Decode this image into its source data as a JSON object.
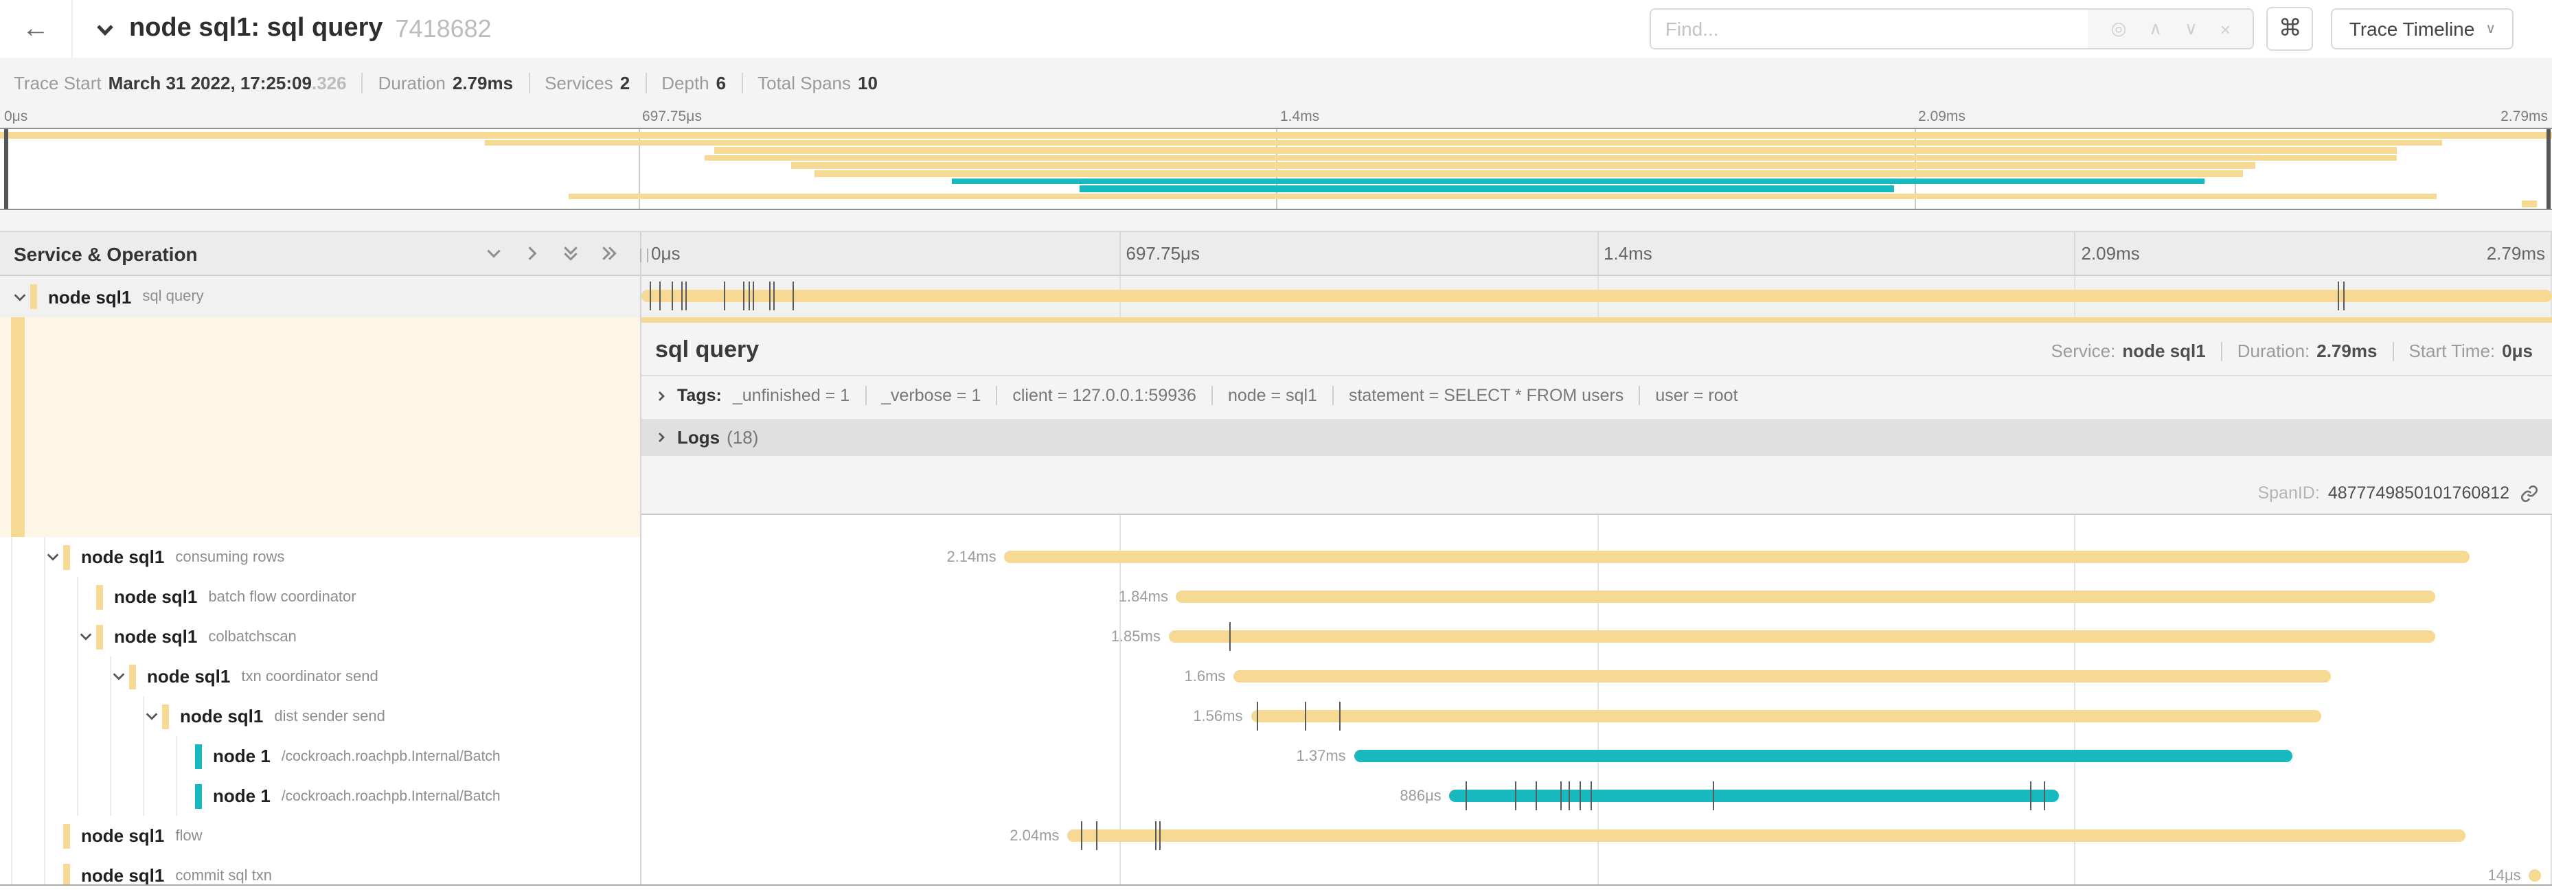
{
  "colors": {
    "tan": "#F6D992",
    "teal": "#17B8BE"
  },
  "header": {
    "back_icon": "←",
    "title": "node sql1: sql query",
    "trace_id": "7418682",
    "find_placeholder": "Find...",
    "locate_icon": "◎",
    "prev_icon": "∧",
    "next_icon": "∨",
    "clear_icon": "×",
    "command_icon": "⌘",
    "view_button": "Trace Timeline",
    "view_chevron": "∨"
  },
  "summary": {
    "items": [
      {
        "label": "Trace Start",
        "value": "March 31 2022, 17:25:09",
        "suffix": ".326"
      },
      {
        "label": "Duration",
        "value": "2.79ms",
        "suffix": ""
      },
      {
        "label": "Services",
        "value": "2",
        "suffix": ""
      },
      {
        "label": "Depth",
        "value": "6",
        "suffix": ""
      },
      {
        "label": "Total Spans",
        "value": "10",
        "suffix": ""
      }
    ]
  },
  "axis": [
    "0μs",
    "697.75μs",
    "1.4ms",
    "2.09ms",
    "2.79ms"
  ],
  "left_header": "Service & Operation",
  "spans": [
    {
      "service": "node sql1",
      "operation": "sql query",
      "depth": 0,
      "has_children": true,
      "expanded": true,
      "color": "tan",
      "start": 0,
      "end": 100,
      "label": "",
      "ticks": [
        0.4,
        0.9,
        1.6,
        2.1,
        2.3,
        4.3,
        5.3,
        5.6,
        5.8,
        6.7,
        6.9,
        7.9,
        88.8,
        89.1
      ]
    },
    {
      "service": "node sql1",
      "operation": "consuming rows",
      "depth": 1,
      "has_children": true,
      "color": "tan",
      "start": 19.0,
      "end": 95.7,
      "label": "2.14ms",
      "ticks": []
    },
    {
      "service": "node sql1",
      "operation": "batch flow coordinator",
      "depth": 2,
      "has_children": false,
      "color": "tan",
      "start": 28.0,
      "end": 93.9,
      "label": "1.84ms",
      "ticks": []
    },
    {
      "service": "node sql1",
      "operation": "colbatchscan",
      "depth": 2,
      "has_children": true,
      "color": "tan",
      "start": 27.6,
      "end": 93.9,
      "label": "1.85ms",
      "ticks": [
        30.8
      ]
    },
    {
      "service": "node sql1",
      "operation": "txn coordinator send",
      "depth": 3,
      "has_children": true,
      "color": "tan",
      "start": 31.0,
      "end": 88.4,
      "label": "1.6ms",
      "ticks": []
    },
    {
      "service": "node sql1",
      "operation": "dist sender send",
      "depth": 4,
      "has_children": true,
      "color": "tan",
      "start": 31.9,
      "end": 87.9,
      "label": "1.56ms",
      "ticks": [
        32.2,
        34.7,
        36.5
      ]
    },
    {
      "service": "node 1",
      "operation": "/cockroach.roachpb.Internal/Batch",
      "depth": 5,
      "has_children": false,
      "color": "teal",
      "start": 37.3,
      "end": 86.4,
      "label": "1.37ms",
      "ticks": []
    },
    {
      "service": "node 1",
      "operation": "/cockroach.roachpb.Internal/Batch",
      "depth": 5,
      "has_children": false,
      "color": "teal",
      "start": 42.3,
      "end": 74.2,
      "label": "886μs",
      "ticks": [
        43.1,
        45.7,
        46.8,
        48.1,
        48.5,
        49.1,
        49.7,
        56.1,
        72.7,
        73.4
      ]
    },
    {
      "service": "node sql1",
      "operation": "flow",
      "depth": 1,
      "has_children": false,
      "color": "tan",
      "start": 22.3,
      "end": 95.5,
      "label": "2.04ms",
      "ticks": [
        23.0,
        23.8,
        26.9,
        27.1
      ]
    },
    {
      "service": "node sql1",
      "operation": "commit sql txn",
      "depth": 1,
      "has_children": false,
      "color": "tan",
      "start": 98.8,
      "end": 99.4,
      "label": "14μs",
      "ticks": []
    }
  ],
  "minimap": {
    "spans": [
      {
        "start": 0,
        "end": 100,
        "color": "tan"
      },
      {
        "start": 19.0,
        "end": 95.7,
        "color": "tan"
      },
      {
        "start": 28.0,
        "end": 93.9,
        "color": "tan"
      },
      {
        "start": 27.6,
        "end": 93.9,
        "color": "tan"
      },
      {
        "start": 31.0,
        "end": 88.4,
        "color": "tan"
      },
      {
        "start": 31.9,
        "end": 87.9,
        "color": "tan"
      },
      {
        "start": 37.3,
        "end": 86.4,
        "color": "teal"
      },
      {
        "start": 42.3,
        "end": 74.2,
        "color": "teal"
      },
      {
        "start": 22.3,
        "end": 95.5,
        "color": "tan"
      },
      {
        "start": 98.8,
        "end": 99.4,
        "color": "tan"
      }
    ]
  },
  "detail": {
    "title": "sql query",
    "service_label": "Service:",
    "service": "node sql1",
    "duration_label": "Duration:",
    "duration": "2.79ms",
    "start_label": "Start Time:",
    "start_time": "0μs",
    "tags_label": "Tags:",
    "tags": [
      "_unfinished = 1",
      "_verbose = 1",
      "client = 127.0.0.1:59936",
      "node = sql1",
      "statement = SELECT * FROM users",
      "user = root"
    ],
    "logs_label": "Logs",
    "logs_count": "(18)",
    "spanid_label": "SpanID:",
    "spanid": "4877749850101760812"
  }
}
